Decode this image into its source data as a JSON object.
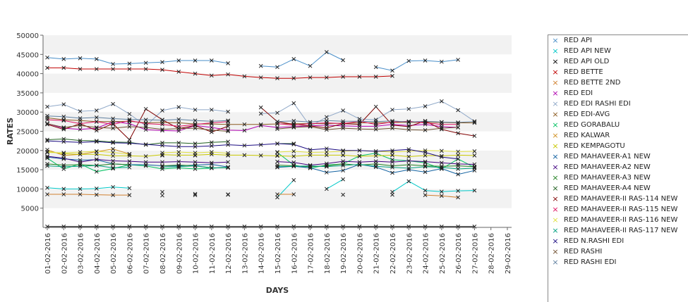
{
  "chart_data": {
    "type": "line",
    "xlabel": "DAYS",
    "ylabel": "RATES",
    "ylim": [
      0,
      50000
    ],
    "yticks": [
      5000,
      10000,
      15000,
      20000,
      25000,
      30000,
      35000,
      40000,
      45000,
      50000
    ],
    "ytick_labels": [
      "5000",
      "10000",
      "15000",
      "20000",
      "25000",
      "30000",
      "35000",
      "40000",
      "45000",
      "50000"
    ],
    "categories": [
      "01-02-2016",
      "02-02-2016",
      "03-02-2016",
      "04-02-2016",
      "05-02-2016",
      "06-02-2016",
      "07-02-2016",
      "08-02-2016",
      "09-02-2016",
      "10-02-2016",
      "11-02-2016",
      "12-02-2016",
      "13-02-2016",
      "14-02-2016",
      "15-02-2016",
      "16-02-2016",
      "17-02-2016",
      "18-02-2016",
      "19-02-2016",
      "20-02-2016",
      "21-02-2016",
      "22-02-2016",
      "23-02-2016",
      "24-02-2016",
      "25-02-2016",
      "26-02-2016",
      "27-02-2016",
      "28-02-2016",
      "29-02-2016"
    ],
    "grid": "horizontal alternating bands",
    "legend_position": "right",
    "series": [
      {
        "name": "RED API",
        "color": "#4a8fc9",
        "values": [
          44200,
          43800,
          44000,
          43800,
          42500,
          42600,
          42800,
          43000,
          43400,
          43400,
          43400,
          42700,
          null,
          42000,
          41700,
          43800,
          42000,
          45600,
          43500,
          null,
          41700,
          40800,
          43300,
          43400,
          43100,
          43600,
          null,
          null,
          null
        ]
      },
      {
        "name": "RED API NEW",
        "color": "#00c8c8",
        "values": [
          10300,
          10000,
          10000,
          10100,
          10500,
          10200,
          null,
          9200,
          null,
          8700,
          null,
          8600,
          null,
          null,
          7800,
          12300,
          null,
          10000,
          12500,
          null,
          null,
          9200,
          12000,
          9600,
          9300,
          9500,
          9600,
          null,
          null
        ]
      },
      {
        "name": "RED API OLD",
        "color": "#000000",
        "values": [
          200,
          200,
          200,
          200,
          200,
          200,
          200,
          200,
          200,
          200,
          200,
          200,
          200,
          200,
          200,
          200,
          200,
          200,
          200,
          200,
          200,
          200,
          200,
          200,
          200,
          200,
          200,
          null,
          null
        ]
      },
      {
        "name": "RED BETTE",
        "color": "#c00000",
        "values": [
          41500,
          41500,
          41200,
          41200,
          41200,
          41200,
          41200,
          41000,
          40500,
          40000,
          39500,
          39800,
          39300,
          39000,
          38800,
          38800,
          39000,
          39000,
          39200,
          39200,
          39200,
          39400,
          null,
          null,
          null,
          null,
          null,
          null,
          null
        ]
      },
      {
        "name": "RED BETTE 2ND",
        "color": "#d08030",
        "values": [
          8600,
          8600,
          8600,
          8500,
          8400,
          8400,
          null,
          8300,
          null,
          8400,
          null,
          8500,
          null,
          null,
          8600,
          8600,
          null,
          null,
          8500,
          null,
          null,
          8500,
          null,
          8400,
          8200,
          7800,
          null,
          null,
          null
        ]
      },
      {
        "name": "RED EDI",
        "color": "#b000b0",
        "values": [
          27000,
          25800,
          25500,
          25800,
          27500,
          27000,
          25400,
          25200,
          25100,
          26500,
          26000,
          25300,
          25200,
          26500,
          26000,
          26200,
          26400,
          26600,
          26400,
          26300,
          26300,
          26800,
          26500,
          26800,
          26200,
          26000,
          null,
          null,
          null
        ]
      },
      {
        "name": "RED EDI RASHI EDI",
        "color": "#8fa8c8",
        "values": [
          31400,
          32000,
          30200,
          30400,
          32100,
          29500,
          26400,
          30400,
          31300,
          30600,
          30600,
          30100,
          null,
          29600,
          29800,
          32300,
          26300,
          28700,
          30400,
          28200,
          28000,
          30600,
          30800,
          31500,
          32800,
          30500,
          27600,
          null,
          null
        ]
      },
      {
        "name": "RED EDI-AVG",
        "color": "#8a5a20",
        "values": [
          28500,
          28000,
          27800,
          27500,
          27500,
          27600,
          27200,
          27300,
          27200,
          26900,
          26900,
          26800,
          26800,
          26800,
          26900,
          27000,
          27000,
          27000,
          27100,
          27200,
          27200,
          27300,
          27300,
          27300,
          27300,
          27200,
          27200,
          null,
          null
        ]
      },
      {
        "name": "RED GORABALU",
        "color": "#00c060",
        "values": [
          18000,
          15200,
          16500,
          14500,
          15300,
          16300,
          16000,
          15200,
          15500,
          15200,
          15400,
          15600,
          null,
          null,
          19500,
          16200,
          15400,
          16200,
          16500,
          18600,
          19300,
          17600,
          17300,
          16800,
          15200,
          17800,
          15600,
          null,
          null
        ]
      },
      {
        "name": "RED KALWAR",
        "color": "#d09020",
        "values": [
          20200,
          18700,
          19000,
          19700,
          20400,
          19100,
          null,
          18700,
          null,
          18700,
          null,
          18700,
          null,
          null,
          18700,
          null,
          null,
          null,
          18800,
          null,
          null,
          18800,
          null,
          null,
          null,
          null,
          null,
          null,
          null
        ]
      },
      {
        "name": "RED KEMPAGOTU",
        "color": "#c8c800",
        "values": [
          19700,
          19200,
          19000,
          19000,
          18600,
          18600,
          18500,
          18900,
          18800,
          18800,
          19000,
          18800,
          18800,
          18700,
          18600,
          18500,
          18800,
          18800,
          18800,
          18500,
          18600,
          18800,
          18400,
          18700,
          18600,
          18800,
          18700,
          null,
          null
        ]
      },
      {
        "name": "RED MAHAVEER-A1 NEW",
        "color": "#1060a0",
        "values": [
          18300,
          17800,
          17500,
          17600,
          16500,
          16300,
          16300,
          16000,
          16000,
          16200,
          16400,
          15700,
          null,
          null,
          15600,
          15900,
          15500,
          14300,
          14800,
          16400,
          15700,
          14200,
          15000,
          14400,
          15300,
          13800,
          14800,
          null,
          null
        ]
      },
      {
        "name": "RED MAHAVEER-A2 NEW",
        "color": "#400080",
        "values": [
          18500,
          18000,
          17000,
          17700,
          17300,
          17200,
          17000,
          17000,
          17100,
          17000,
          16800,
          17000,
          null,
          null,
          17100,
          16900,
          16200,
          16600,
          17200,
          17000,
          17200,
          17000,
          17300,
          17100,
          16800,
          16500,
          16400,
          null,
          null
        ]
      },
      {
        "name": "RED MAHAVEER-A3 NEW",
        "color": "#208020",
        "values": [
          16500,
          16200,
          16300,
          16100,
          16500,
          16300,
          null,
          16000,
          16200,
          16000,
          15500,
          15500,
          null,
          null,
          16200,
          16000,
          15800,
          16000,
          16500,
          16200,
          16500,
          16000,
          16300,
          16000,
          15900,
          16000,
          15800,
          null,
          null
        ]
      },
      {
        "name": "RED MAHAVEER-A4 NEW",
        "color": "#206020",
        "values": [
          22800,
          23000,
          22600,
          22500,
          22200,
          22100,
          21500,
          22000,
          22000,
          21800,
          22100,
          22300,
          null,
          null,
          21800,
          21800,
          null,
          null,
          null,
          null,
          null,
          null,
          null,
          null,
          null,
          null,
          null,
          null,
          null
        ]
      },
      {
        "name": "RED MAHAVEER-II RAS-114 NEW",
        "color": "#800000",
        "values": [
          26800,
          25500,
          27000,
          25200,
          27000,
          22800,
          30800,
          28000,
          25700,
          26500,
          24800,
          26300,
          null,
          31200,
          27500,
          26800,
          26400,
          25900,
          27000,
          26800,
          31400,
          26600,
          26200,
          27700,
          25500,
          24500,
          23800,
          null,
          null
        ]
      },
      {
        "name": "RED MAHAVEER-II RAS-115 NEW",
        "color": "#e01060",
        "values": [
          28000,
          27800,
          27000,
          27500,
          26800,
          27800,
          27000,
          26800,
          26300,
          26800,
          27200,
          27500,
          null,
          null,
          27000,
          26600,
          27000,
          27200,
          27000,
          27600,
          26800,
          27400,
          27600,
          27200,
          26800,
          26800,
          null,
          null,
          null
        ]
      },
      {
        "name": "RED MAHAVEER-II RAS-116 NEW",
        "color": "#e0e040",
        "values": [
          19500,
          19400,
          19600,
          19800,
          19500,
          19000,
          null,
          19400,
          19600,
          19400,
          19600,
          19300,
          null,
          null,
          19600,
          19800,
          19500,
          19600,
          19800,
          20000,
          19800,
          19600,
          19800,
          20000,
          19900,
          19700,
          19800,
          null,
          null
        ]
      },
      {
        "name": "RED MAHAVEER-II RAS-117 NEW",
        "color": "#00a080",
        "values": [
          16000,
          15800,
          15900,
          16100,
          15500,
          15600,
          null,
          15700,
          15800,
          16000,
          15400,
          15600,
          null,
          null,
          15800,
          15900,
          16000,
          15800,
          16100,
          16400,
          15900,
          15600,
          15400,
          15800,
          15600,
          15200,
          15400,
          null,
          null
        ]
      },
      {
        "name": "RED N.RASHI EDI",
        "color": "#1a0a80",
        "values": [
          22500,
          22300,
          22100,
          22300,
          22000,
          21900,
          21600,
          21300,
          21000,
          21000,
          21200,
          21500,
          21300,
          21500,
          21800,
          21600,
          20200,
          20500,
          20000,
          20000,
          19800,
          20000,
          20300,
          19500,
          18300,
          17800,
          null,
          null,
          null
        ]
      },
      {
        "name": "RED RASHI",
        "color": "#705030",
        "values": [
          27000,
          26000,
          26500,
          26000,
          25800,
          26200,
          26000,
          25500,
          25700,
          25800,
          25300,
          25000,
          null,
          null,
          25600,
          26000,
          26200,
          25400,
          25800,
          25600,
          25500,
          25800,
          25400,
          25300,
          25800,
          26000,
          null,
          null,
          null
        ]
      },
      {
        "name": "RED RASHI EDI",
        "color": "#6080a0",
        "values": [
          29000,
          28800,
          28400,
          28600,
          28300,
          28100,
          28000,
          27900,
          28100,
          27800,
          27600,
          27800,
          null,
          null,
          27500,
          27700,
          27400,
          27800,
          27600,
          27600,
          27500,
          27700,
          27400,
          27600,
          27400,
          27300,
          27500,
          null,
          null
        ]
      }
    ]
  }
}
